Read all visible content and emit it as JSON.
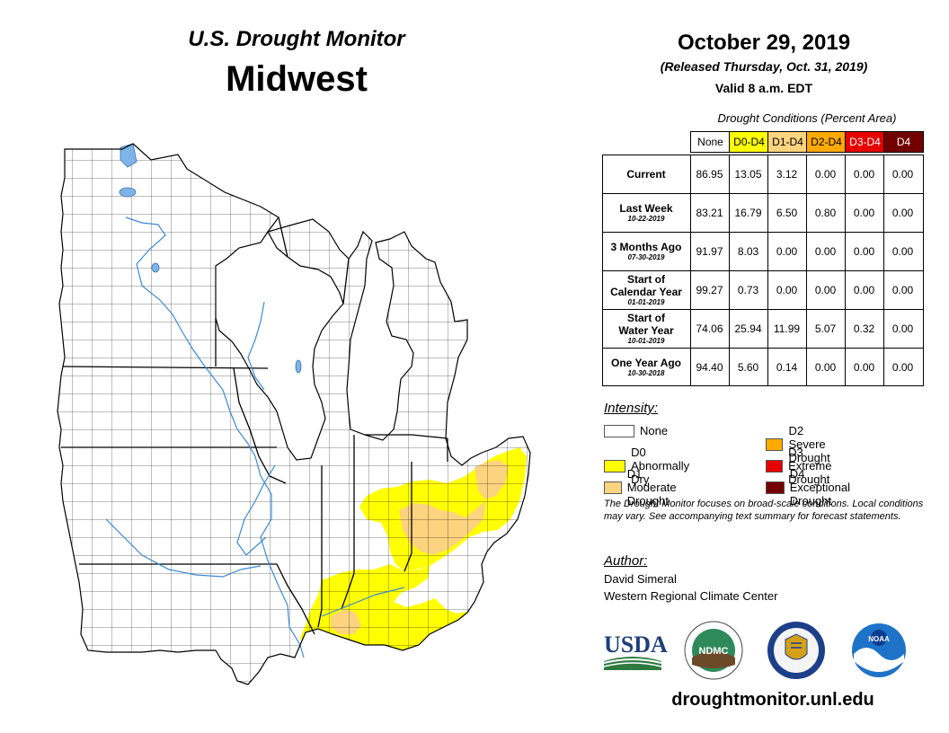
{
  "header": {
    "title": "U.S. Drought Monitor",
    "region": "Midwest",
    "date": "October 29, 2019",
    "released": "(Released Thursday, Oct. 31, 2019)",
    "valid": "Valid 8 a.m. EDT"
  },
  "table": {
    "caption": "Drought Conditions (Percent Area)",
    "columns": [
      {
        "label": "None",
        "color": "#ffffff"
      },
      {
        "label": "D0-D4",
        "color": "#ffff00"
      },
      {
        "label": "D1-D4",
        "color": "#fcd37f"
      },
      {
        "label": "D2-D4",
        "color": "#ffaa00"
      },
      {
        "label": "D3-D4",
        "color": "#e60000"
      },
      {
        "label": "D4",
        "color": "#730000"
      }
    ],
    "rows": [
      {
        "label": [
          "Current"
        ],
        "date": "",
        "values": [
          "86.95",
          "13.05",
          "3.12",
          "0.00",
          "0.00",
          "0.00"
        ]
      },
      {
        "label": [
          "Last Week"
        ],
        "date": "10-22-2019",
        "values": [
          "83.21",
          "16.79",
          "6.50",
          "0.80",
          "0.00",
          "0.00"
        ]
      },
      {
        "label": [
          "3 Months Ago"
        ],
        "date": "07-30-2019",
        "values": [
          "91.97",
          "8.03",
          "0.00",
          "0.00",
          "0.00",
          "0.00"
        ]
      },
      {
        "label": [
          "Start of",
          "Calendar Year"
        ],
        "date": "01-01-2019",
        "values": [
          "99.27",
          "0.73",
          "0.00",
          "0.00",
          "0.00",
          "0.00"
        ]
      },
      {
        "label": [
          "Start of",
          "Water Year"
        ],
        "date": "10-01-2019",
        "values": [
          "74.06",
          "25.94",
          "11.99",
          "5.07",
          "0.32",
          "0.00"
        ]
      },
      {
        "label": [
          "One Year Ago"
        ],
        "date": "10-30-2018",
        "values": [
          "94.40",
          "5.60",
          "0.14",
          "0.00",
          "0.00",
          "0.00"
        ]
      }
    ]
  },
  "legend": {
    "title": "Intensity:",
    "items": [
      {
        "label": "None",
        "color": "#ffffff"
      },
      {
        "label": "D0 Abnormally Dry",
        "color": "#ffff00"
      },
      {
        "label": "D1 Moderate Drought",
        "color": "#fcd37f"
      },
      {
        "label": "D2 Severe Drought",
        "color": "#ffaa00"
      },
      {
        "label": "D3 Extreme Drought",
        "color": "#e60000"
      },
      {
        "label": "D4 Exceptional Drought",
        "color": "#730000"
      }
    ]
  },
  "note": "The Drought Monitor focuses on broad-scale conditions. Local conditions may vary. See accompanying text summary for forecast statements.",
  "author": {
    "label": "Author:",
    "name": "David Simeral",
    "org": "Western Regional Climate Center"
  },
  "logos": {
    "usda": "USDA",
    "ndmc": "NDMC",
    "noaa": "NOAA"
  },
  "url": "droughtmonitor.unl.edu",
  "map": {
    "region": "Midwest",
    "colors": {
      "land": "#ffffff",
      "water": "#7fb4e8",
      "d0": "#ffff00",
      "d1": "#fcd37f",
      "outline": "#000000"
    }
  }
}
